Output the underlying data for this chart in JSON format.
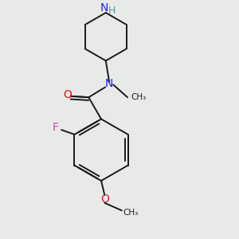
{
  "background_color": "#e8eae8",
  "bond_color": "#1a1a1a",
  "bond_width": 1.4,
  "N_color": "#2020e8",
  "NH_color": "#5599aa",
  "O_color": "#e01010",
  "F_color": "#cc44aa",
  "OMe_color": "#cc2244",
  "figsize": [
    3.0,
    3.0
  ],
  "dpi": 100,
  "xlim": [
    0,
    10
  ],
  "ylim": [
    0,
    10
  ]
}
